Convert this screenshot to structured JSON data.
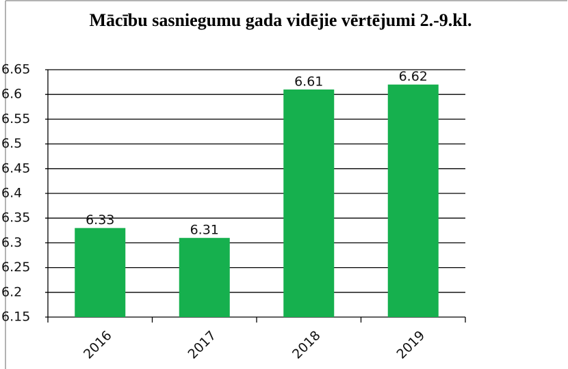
{
  "chart_data": {
    "type": "bar",
    "title": "Mācību sasniegumu gada vidējie vērtējumi 2.-9.kl.",
    "categories": [
      "2016",
      "2017",
      "2018",
      "2019"
    ],
    "values": [
      6.33,
      6.31,
      6.61,
      6.62
    ],
    "color": "#16b04e",
    "ylim": [
      6.15,
      6.65
    ],
    "yticks": [
      6.15,
      6.2,
      6.25,
      6.3,
      6.35,
      6.4,
      6.45,
      6.5,
      6.55,
      6.6,
      6.65
    ],
    "grid": true
  }
}
